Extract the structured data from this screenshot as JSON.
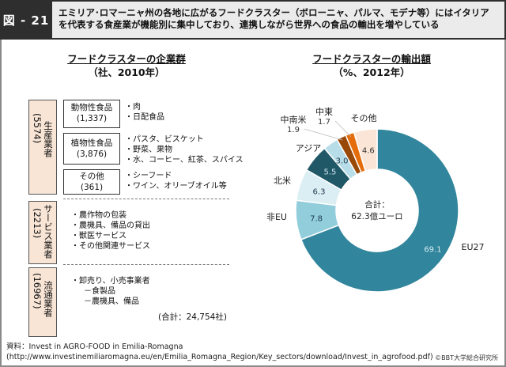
{
  "header": {
    "figure_label": "図 - 21",
    "title_line1": "エミリア･ロマーニャ州の各地に広がるフードクラスター（ボローニャ、パルマ、モデナ等）にはイタリア",
    "title_line2": "を代表する食産業が機能別に集中しており、連携しながら世界への食品の輸出を増やしている"
  },
  "left": {
    "title": "フードクラスターの企業群",
    "subtitle": "（社、2010年）",
    "groups": [
      {
        "name": "生産業者",
        "count": "(5574)",
        "subgroups": [
          {
            "name": "動物性食品",
            "count": "(1,337)",
            "items": [
              "・肉",
              "・日配食品"
            ]
          },
          {
            "name": "植物性食品",
            "count": "(3,876)",
            "items": [
              "・パスタ、ビスケット",
              "・野菜、果物",
              "・水、コーヒー、紅茶、スパイス"
            ]
          },
          {
            "name": "その他",
            "count": "(361)",
            "items": [
              "・シーフード",
              "・ワイン、オリーブオイル等"
            ]
          }
        ]
      },
      {
        "name": "サービス業者",
        "count": "(2213)",
        "items": [
          "・農作物の包装",
          "・農機具、備品の貸出",
          "・獣医サービス",
          "・その他関連サービス"
        ]
      },
      {
        "name": "流通業者",
        "count": "(16967)",
        "items": [
          "・卸売り、小売事業者",
          "　－食製品",
          "　－農機具、備品"
        ]
      }
    ],
    "total": "(合計：24,754社)"
  },
  "source": {
    "line1": "資料：Invest in AGRO-FOOD in Emilia-Romagna",
    "line2": "(http://www.investinemiliaromagna.eu/en/Emilia_Romagna_Region/Key_sectors/download/Invest_in_agrofood.pdf)"
  },
  "copyright": "©BBT大学総合研究所",
  "chart_data": {
    "type": "pie",
    "donut": true,
    "title": "フードクラスターの輸出額",
    "subtitle": "（%、2012年）",
    "center_label_line1": "合計：",
    "center_label_line2": "62.3億ユーロ",
    "start": "top",
    "direction": "clockwise",
    "slices": [
      {
        "label": "EU27",
        "value": 69.1,
        "value_label": "69.1",
        "color": "#31859c",
        "text_color": "#d8eef4"
      },
      {
        "label": "非EU",
        "value": 7.8,
        "value_label": "7.8",
        "color": "#92cddc",
        "text_color": "#1f3b4d"
      },
      {
        "label": "北米",
        "value": 6.3,
        "value_label": "6.3",
        "color": "#dbeef4",
        "text_color": "#1f3b4d"
      },
      {
        "label": "アジア",
        "value": 5.5,
        "value_label": "5.5",
        "color": "#215868",
        "text_color": "#cfe6ee"
      },
      {
        "label": "",
        "value": 3.0,
        "value_label": "3.0",
        "color": "#b7dde8",
        "text_color": "#1f3b4d"
      },
      {
        "label": "中南米",
        "value": 1.9,
        "value_label": "1.9",
        "color": "#984807",
        "text_color": "#333333"
      },
      {
        "label": "中東",
        "value": 1.7,
        "value_label": "1.7",
        "color": "#e46c0a",
        "text_color": "#333333"
      },
      {
        "label": "その他",
        "value": 4.6,
        "value_label": "4.6",
        "color": "#fbe5d6",
        "text_color": "#333333"
      }
    ]
  }
}
